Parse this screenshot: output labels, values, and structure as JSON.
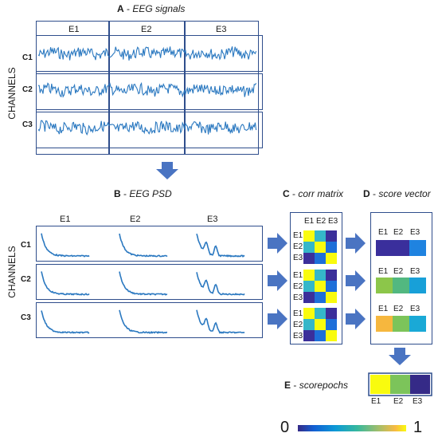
{
  "panel_a": {
    "letter": "A",
    "title": "EEG signals"
  },
  "panel_b": {
    "letter": "B",
    "title": "EEG PSD"
  },
  "panel_c": {
    "letter": "C",
    "title": "corr matrix"
  },
  "panel_d": {
    "letter": "D",
    "title": "score vector"
  },
  "panel_e": {
    "letter": "E",
    "title": "scorepochs"
  },
  "channels_label": "CHANNELS",
  "channels": [
    "C1",
    "C2",
    "C3"
  ],
  "epochs": [
    "E1",
    "E2",
    "E3"
  ],
  "colorbar": {
    "min": "0",
    "max": "1"
  },
  "colors": {
    "frame": "#2f4e8c",
    "signal": "#2a78c0",
    "arrow": "#4a74c2"
  }
}
